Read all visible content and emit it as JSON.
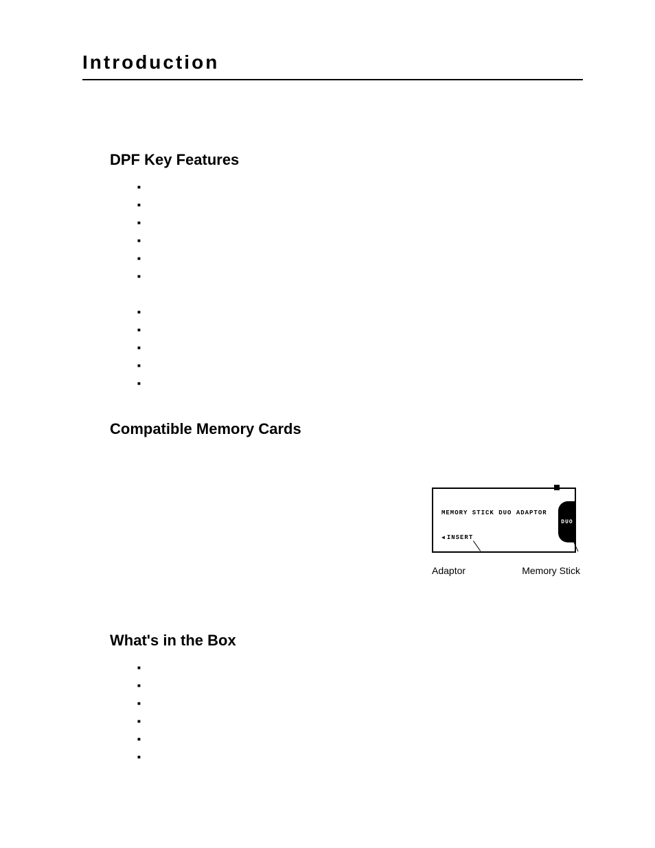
{
  "colors": {
    "background": "#ffffff",
    "text": "#000000",
    "rule": "#000000"
  },
  "typography": {
    "page_title_fontsize": 28,
    "page_title_letterspacing": 3,
    "section_heading_fontsize": 22,
    "body_fontsize": 14,
    "figure_label_fontsize": 14,
    "ms_label_fontsize": 9
  },
  "header": {
    "title": "Introduction"
  },
  "sections": {
    "features": {
      "heading": "DPF Key Features",
      "bullet_count_group1": 6,
      "bullet_count_group2": 5
    },
    "cards": {
      "heading": "Compatible Memory Cards"
    },
    "box": {
      "heading": "What's in the Box",
      "bullet_count": 6
    }
  },
  "figure": {
    "adaptor_label": "MEMORY STICK DUO ADAPTOR",
    "insert_label": "INSERT",
    "duo_tab": "DUO",
    "callout_left": "Adaptor",
    "callout_right": "Memory Stick"
  }
}
